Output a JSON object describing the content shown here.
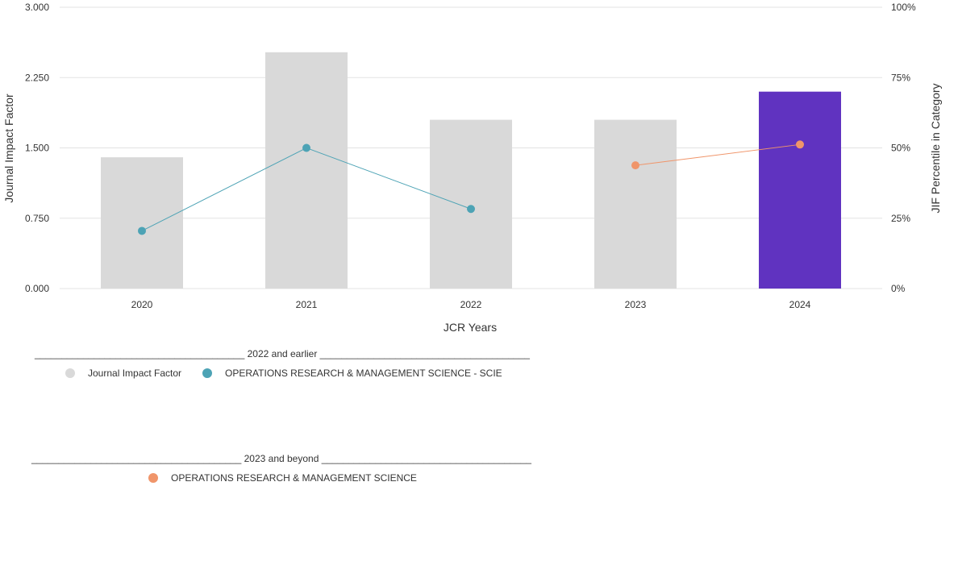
{
  "chart_data": {
    "type": "bar",
    "categories": [
      "2020",
      "2021",
      "2022",
      "2023",
      "2024"
    ],
    "xlabel": "JCR Years",
    "ylabel": "Journal Impact Factor",
    "ylabel_right": "JIF Percentile in Category",
    "ylim": [
      0,
      3
    ],
    "yticks": [
      "0.000",
      "0.750",
      "1.500",
      "2.250",
      "3.000"
    ],
    "ylim_right": [
      0,
      100
    ],
    "yticks_right": [
      "0%",
      "25%",
      "50%",
      "75%",
      "100%"
    ],
    "grid": true,
    "series": [
      {
        "name": "Journal Impact Factor",
        "kind": "bar",
        "axis": "left",
        "values": [
          1.4,
          2.52,
          1.8,
          1.8,
          2.1
        ],
        "colors": [
          "#d9d9d9",
          "#d9d9d9",
          "#d9d9d9",
          "#d9d9d9",
          "#6033c0"
        ]
      },
      {
        "name": "OPERATIONS RESEARCH & MANAGEMENT SCIENCE - SCIE",
        "kind": "line",
        "axis": "right",
        "color": "#4da3b5",
        "values": [
          20.5,
          50.0,
          28.3,
          null,
          null
        ]
      },
      {
        "name": "OPERATIONS RESEARCH & MANAGEMENT SCIENCE",
        "kind": "line",
        "axis": "right",
        "color": "#f0956a",
        "values": [
          null,
          null,
          null,
          43.8,
          51.2
        ]
      }
    ]
  },
  "legend": {
    "group1": {
      "header": "_______________________________________ 2022 and earlier _______________________________________",
      "items": [
        {
          "label": "Journal Impact Factor",
          "color": "#d9d9d9"
        },
        {
          "label": "OPERATIONS RESEARCH & MANAGEMENT SCIENCE - SCIE",
          "color": "#4da3b5"
        }
      ]
    },
    "group2": {
      "header": "_______________________________________ 2023 and beyond _______________________________________",
      "items": [
        {
          "label": "OPERATIONS RESEARCH & MANAGEMENT SCIENCE",
          "color": "#f0956a"
        }
      ]
    }
  }
}
